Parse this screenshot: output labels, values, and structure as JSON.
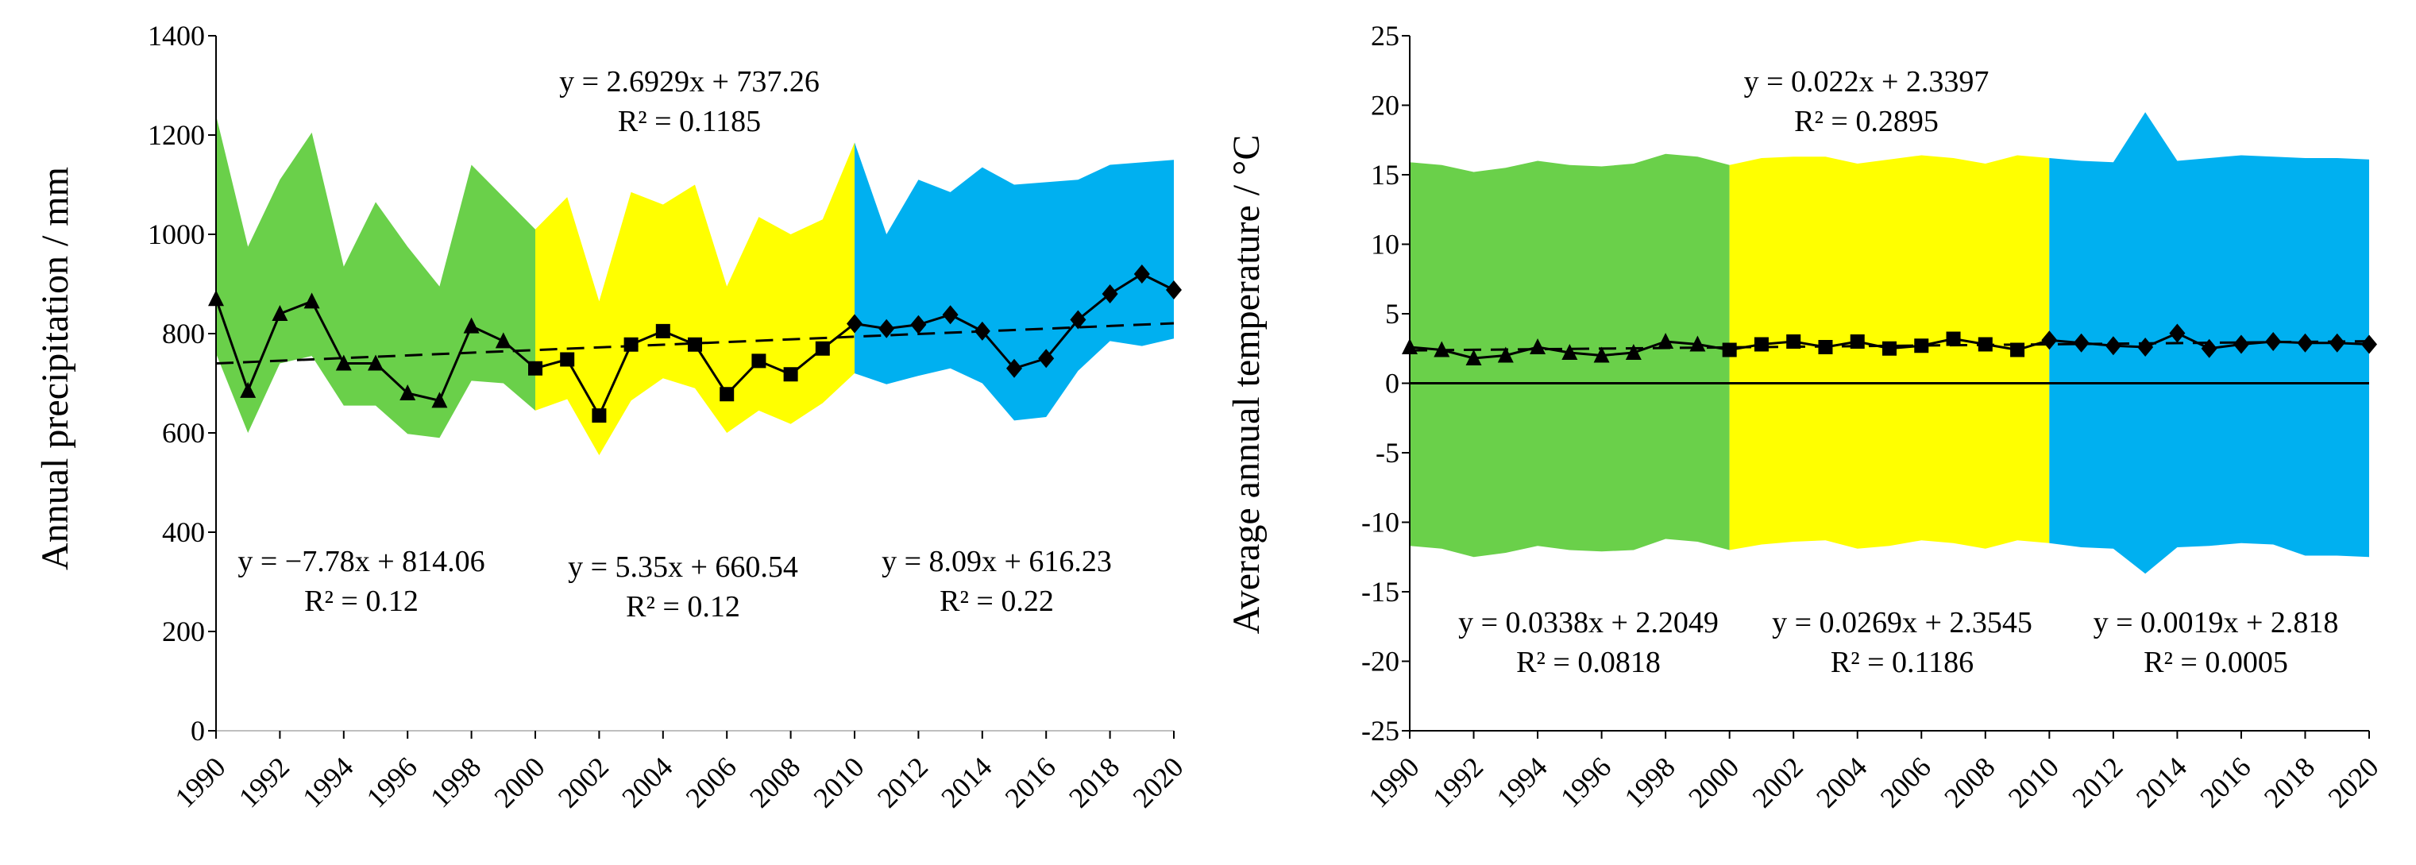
{
  "colors": {
    "period1": "#6ad04a",
    "period2": "#ffff00",
    "period3": "#00b0f0",
    "line": "#000000"
  },
  "chart_data": [
    {
      "type": "area-line",
      "ylabel": "Annual precipitation / mm",
      "ylim": [
        0,
        1400
      ],
      "yticks": [
        0,
        200,
        400,
        600,
        800,
        1000,
        1200,
        1400
      ],
      "xlim": [
        1990,
        2020
      ],
      "xticks": [
        1990,
        1992,
        1994,
        1996,
        1998,
        2000,
        2002,
        2004,
        2006,
        2008,
        2010,
        2012,
        2014,
        2016,
        2018,
        2020
      ],
      "x": [
        1990,
        1991,
        1992,
        1993,
        1994,
        1995,
        1996,
        1997,
        1998,
        1999,
        2000,
        2001,
        2002,
        2003,
        2004,
        2005,
        2006,
        2007,
        2008,
        2009,
        2010,
        2011,
        2012,
        2013,
        2014,
        2015,
        2016,
        2017,
        2018,
        2019,
        2020
      ],
      "series": [
        {
          "name": "annual precipitation",
          "marker_by_period": [
            "triangle",
            "square",
            "diamond"
          ],
          "values": [
            870,
            685,
            840,
            865,
            740,
            740,
            680,
            665,
            815,
            785,
            730,
            748,
            635,
            778,
            805,
            778,
            678,
            745,
            718,
            770,
            820,
            810,
            818,
            838,
            805,
            730,
            750,
            828,
            880,
            920,
            888
          ]
        },
        {
          "name": "upper envelope",
          "values": [
            1240,
            975,
            1110,
            1205,
            935,
            1065,
            975,
            895,
            1140,
            1075,
            1010,
            1075,
            865,
            1085,
            1060,
            1100,
            895,
            1035,
            1000,
            1030,
            1185,
            1000,
            1110,
            1085,
            1135,
            1100,
            1105,
            1110,
            1140,
            1145,
            1150
          ]
        },
        {
          "name": "lower envelope",
          "values": [
            760,
            600,
            740,
            755,
            655,
            655,
            598,
            590,
            705,
            700,
            645,
            668,
            555,
            665,
            710,
            690,
            600,
            645,
            618,
            660,
            720,
            698,
            715,
            730,
            700,
            625,
            632,
            725,
            785,
            775,
            790
          ]
        }
      ],
      "periods": [
        [
          1990,
          2000
        ],
        [
          2000,
          2010
        ],
        [
          2010,
          2020
        ]
      ],
      "trend": {
        "slope": 2.6929,
        "intercept": 737.26
      },
      "annotations": [
        {
          "line1": "y = 2.6929x + 737.26",
          "line2": "R² = 0.1185"
        },
        {
          "line1": "y = −7.78x + 814.06",
          "line2": "R² = 0.12"
        },
        {
          "line1": "y = 5.35x + 660.54",
          "line2": "R² = 0.12"
        },
        {
          "line1": "y = 8.09x + 616.23",
          "line2": "R² = 0.22"
        }
      ]
    },
    {
      "type": "area-line",
      "ylabel": "Average annual temperature / °C",
      "ylim": [
        -25,
        25
      ],
      "yticks": [
        -25,
        -20,
        -15,
        -10,
        -5,
        0,
        5,
        10,
        15,
        20,
        25
      ],
      "xlim": [
        1990,
        2020
      ],
      "xticks": [
        1990,
        1992,
        1994,
        1996,
        1998,
        2000,
        2002,
        2004,
        2006,
        2008,
        2010,
        2012,
        2014,
        2016,
        2018,
        2020
      ],
      "x": [
        1990,
        1991,
        1992,
        1993,
        1994,
        1995,
        1996,
        1997,
        1998,
        1999,
        2000,
        2001,
        2002,
        2003,
        2004,
        2005,
        2006,
        2007,
        2008,
        2009,
        2010,
        2011,
        2012,
        2013,
        2014,
        2015,
        2016,
        2017,
        2018,
        2019,
        2020
      ],
      "series": [
        {
          "name": "average annual temperature",
          "marker_by_period": [
            "triangle",
            "square",
            "diamond"
          ],
          "values": [
            2.6,
            2.4,
            1.8,
            2.0,
            2.6,
            2.2,
            2.0,
            2.2,
            3.0,
            2.8,
            2.4,
            2.8,
            3.0,
            2.6,
            3.0,
            2.5,
            2.7,
            3.2,
            2.8,
            2.4,
            3.1,
            2.9,
            2.7,
            2.6,
            3.6,
            2.5,
            2.8,
            3.0,
            2.9,
            2.9,
            2.8
          ]
        },
        {
          "name": "upper envelope",
          "values": [
            15.9,
            15.7,
            15.2,
            15.5,
            16.0,
            15.7,
            15.6,
            15.8,
            16.5,
            16.3,
            15.7,
            16.2,
            16.3,
            16.3,
            15.8,
            16.1,
            16.4,
            16.2,
            15.8,
            16.4,
            16.2,
            16.0,
            15.9,
            19.5,
            16.0,
            16.2,
            16.4,
            16.3,
            16.2,
            16.2,
            16.1
          ]
        },
        {
          "name": "lower envelope",
          "values": [
            -11.7,
            -11.9,
            -12.5,
            -12.2,
            -11.7,
            -12.0,
            -12.1,
            -12.0,
            -11.2,
            -11.4,
            -12.0,
            -11.6,
            -11.4,
            -11.3,
            -11.9,
            -11.7,
            -11.3,
            -11.5,
            -11.9,
            -11.3,
            -11.5,
            -11.8,
            -11.9,
            -13.7,
            -11.8,
            -11.7,
            -11.5,
            -11.6,
            -12.4,
            -12.4,
            -12.5
          ]
        }
      ],
      "periods": [
        [
          1990,
          2000
        ],
        [
          2000,
          2010
        ],
        [
          2010,
          2020
        ]
      ],
      "trend": {
        "slope": 0.022,
        "intercept": 2.3397
      },
      "annotations": [
        {
          "line1": "y = 0.022x + 2.3397",
          "line2": "R² = 0.2895"
        },
        {
          "line1": "y = 0.0338x + 2.2049",
          "line2": "R² = 0.0818"
        },
        {
          "line1": "y = 0.0269x + 2.3545",
          "line2": "R² = 0.1186"
        },
        {
          "line1": "y = 0.0019x + 2.818",
          "line2": "R² = 0.0005"
        }
      ]
    }
  ]
}
